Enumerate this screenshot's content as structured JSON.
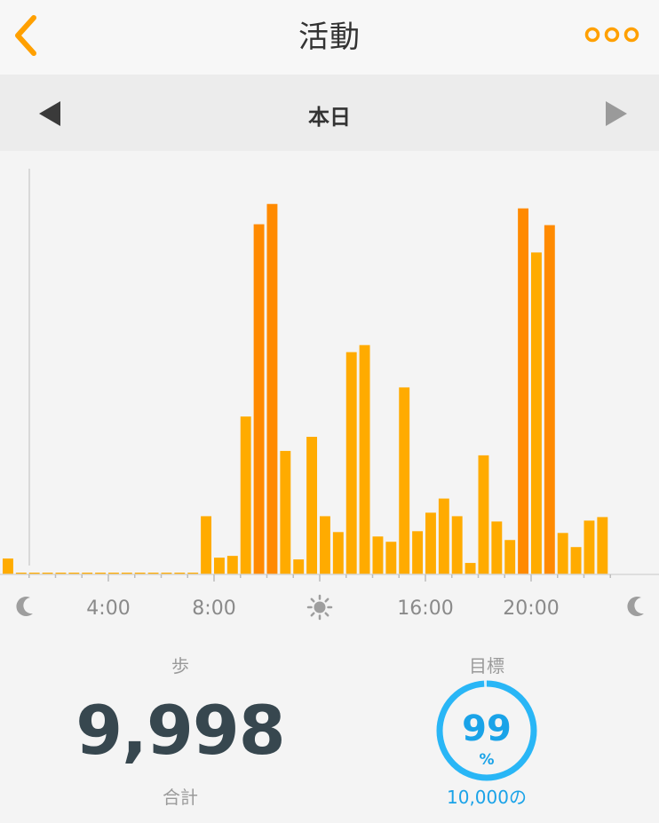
{
  "header": {
    "title": "活動",
    "back_icon": "chevron-left-icon",
    "more_icon": "more-dots-icon",
    "accent_color": "#ffa000"
  },
  "date_nav": {
    "label": "本日",
    "prev_icon": "triangle-left-icon",
    "next_icon": "triangle-right-icon"
  },
  "chart_data": {
    "type": "bar",
    "x_unit": "hour",
    "bin_minutes": 30,
    "bars": [
      {
        "t": 0.0,
        "v": 180
      },
      {
        "t": 0.5,
        "v": 20
      },
      {
        "t": 1.0,
        "v": 20
      },
      {
        "t": 1.5,
        "v": 20
      },
      {
        "t": 2.0,
        "v": 20
      },
      {
        "t": 2.5,
        "v": 20
      },
      {
        "t": 3.0,
        "v": 20
      },
      {
        "t": 3.5,
        "v": 20
      },
      {
        "t": 4.0,
        "v": 20
      },
      {
        "t": 4.5,
        "v": 20
      },
      {
        "t": 5.0,
        "v": 20
      },
      {
        "t": 5.5,
        "v": 20
      },
      {
        "t": 6.0,
        "v": 20
      },
      {
        "t": 6.5,
        "v": 20
      },
      {
        "t": 7.0,
        "v": 20
      },
      {
        "t": 7.5,
        "v": 660
      },
      {
        "t": 8.0,
        "v": 190
      },
      {
        "t": 8.5,
        "v": 210
      },
      {
        "t": 9.0,
        "v": 1790
      },
      {
        "t": 9.5,
        "v": 3970
      },
      {
        "t": 10.0,
        "v": 4200
      },
      {
        "t": 10.5,
        "v": 1400
      },
      {
        "t": 11.0,
        "v": 170
      },
      {
        "t": 11.5,
        "v": 1560
      },
      {
        "t": 12.0,
        "v": 660
      },
      {
        "t": 12.5,
        "v": 480
      },
      {
        "t": 13.0,
        "v": 2520
      },
      {
        "t": 13.5,
        "v": 2600
      },
      {
        "t": 14.0,
        "v": 430
      },
      {
        "t": 14.5,
        "v": 370
      },
      {
        "t": 15.0,
        "v": 2120
      },
      {
        "t": 15.5,
        "v": 490
      },
      {
        "t": 16.0,
        "v": 700
      },
      {
        "t": 16.5,
        "v": 860
      },
      {
        "t": 17.0,
        "v": 660
      },
      {
        "t": 17.5,
        "v": 130
      },
      {
        "t": 18.0,
        "v": 1350
      },
      {
        "t": 18.5,
        "v": 600
      },
      {
        "t": 19.0,
        "v": 390
      },
      {
        "t": 19.5,
        "v": 4150
      },
      {
        "t": 20.0,
        "v": 3650
      },
      {
        "t": 20.5,
        "v": 3960
      },
      {
        "t": 21.0,
        "v": 470
      },
      {
        "t": 21.5,
        "v": 310
      },
      {
        "t": 22.0,
        "v": 610
      },
      {
        "t": 22.5,
        "v": 650
      }
    ],
    "peak_threshold": 3700,
    "ylim": [
      0,
      4600
    ],
    "x_range": [
      0,
      24
    ],
    "ticks": [
      {
        "t": 0,
        "kind": "icon",
        "icon": "moon-icon"
      },
      {
        "t": 4,
        "kind": "label",
        "label": "4:00"
      },
      {
        "t": 8,
        "kind": "label",
        "label": "8:00"
      },
      {
        "t": 12,
        "kind": "icon",
        "icon": "sun-icon"
      },
      {
        "t": 16,
        "kind": "label",
        "label": "16:00"
      },
      {
        "t": 20,
        "kind": "label",
        "label": "20:00"
      },
      {
        "t": 24,
        "kind": "icon",
        "icon": "moon-icon"
      }
    ],
    "bar_color": "#ffab00",
    "peak_color": "#ff8a00",
    "grid": false,
    "legend": "none"
  },
  "stats": {
    "steps_label": "歩",
    "steps_value": "9,998",
    "steps_total_label": "合計",
    "goal_label": "目標",
    "goal_percent": 99,
    "goal_percent_text": "99",
    "goal_percent_sign": "%",
    "goal_target": "10,000の",
    "goal_color": "#29b6f6"
  }
}
